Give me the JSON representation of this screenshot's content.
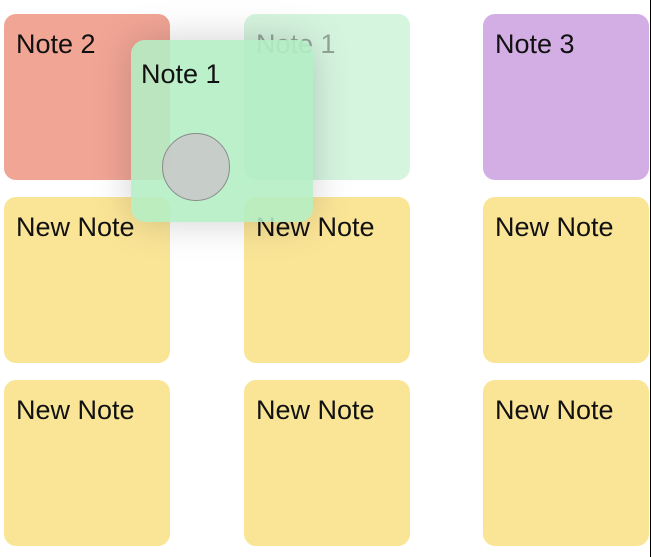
{
  "colors": {
    "note_red": "#f1a595",
    "note_green_ghost": "#d6f5df",
    "note_purple": "#d3aee4",
    "note_yellow": "#fae597",
    "note_green_drag": "#b2eec4"
  },
  "notes": [
    {
      "label": "Note 2",
      "color": "#f1a595"
    },
    {
      "label": "Note 1",
      "color": "#d6f5df"
    },
    {
      "label": "Note 3",
      "color": "#d3aee4"
    },
    {
      "label": "New Note",
      "color": "#fae597"
    },
    {
      "label": "New Note",
      "color": "#fae597"
    },
    {
      "label": "New Note",
      "color": "#fae597"
    },
    {
      "label": "New Note",
      "color": "#fae597"
    },
    {
      "label": "New Note",
      "color": "#fae597"
    },
    {
      "label": "New Note",
      "color": "#fae597"
    }
  ],
  "dragging_note": {
    "label": "Note 1",
    "color": "#b2eec4"
  }
}
